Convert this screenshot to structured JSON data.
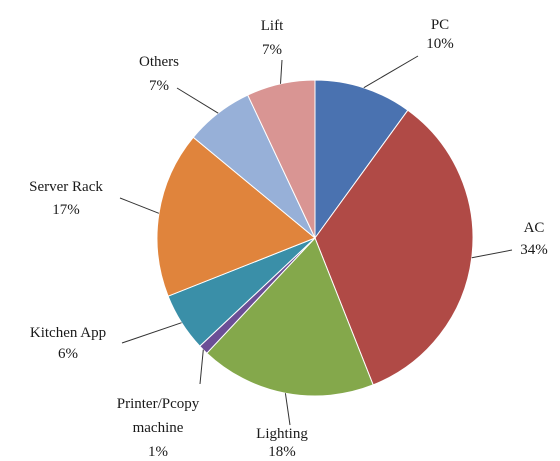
{
  "chart_data": {
    "type": "pie",
    "title": "",
    "slices": [
      {
        "name": "PC",
        "value": 10,
        "label": "10%",
        "color": "#4a72b0"
      },
      {
        "name": "AC",
        "value": 34,
        "label": "34%",
        "color": "#b04a46"
      },
      {
        "name": "Lighting",
        "value": 18,
        "label": "18%",
        "color": "#84a84b"
      },
      {
        "name": "Printer/Pcopy machine",
        "value": 1,
        "label": "1%",
        "color": "#6b4f96"
      },
      {
        "name": "Kitchen App",
        "value": 6,
        "label": "6%",
        "color": "#3a8fa8"
      },
      {
        "name": "Server Rack",
        "value": 17,
        "label": "17%",
        "color": "#e0843c"
      },
      {
        "name": "Others",
        "value": 7,
        "label": "7%",
        "color": "#97b0d8"
      },
      {
        "name": "Lift",
        "value": 7,
        "label": "7%",
        "color": "#d99593"
      }
    ],
    "legend": "none",
    "data_labels": "outside with leader lines"
  }
}
